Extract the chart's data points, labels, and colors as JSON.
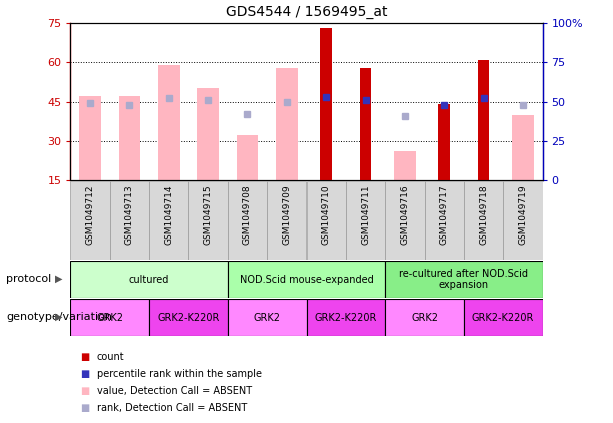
{
  "title": "GDS4544 / 1569495_at",
  "samples": [
    "GSM1049712",
    "GSM1049713",
    "GSM1049714",
    "GSM1049715",
    "GSM1049708",
    "GSM1049709",
    "GSM1049710",
    "GSM1049711",
    "GSM1049716",
    "GSM1049717",
    "GSM1049718",
    "GSM1049719"
  ],
  "count_values": [
    null,
    null,
    null,
    null,
    null,
    null,
    73,
    58,
    null,
    44,
    61,
    null
  ],
  "pink_bar_heights": [
    47,
    47,
    59,
    50,
    32,
    58,
    null,
    null,
    26,
    null,
    null,
    40
  ],
  "red_bar_absent": [
    null,
    null,
    null,
    null,
    null,
    null,
    73,
    58,
    null,
    44,
    61,
    null
  ],
  "blue_square_values": [
    49,
    48,
    52,
    51,
    42,
    50,
    53,
    51,
    41,
    48,
    52,
    48
  ],
  "blue_absent": [
    true,
    true,
    true,
    true,
    true,
    true,
    false,
    false,
    true,
    false,
    false,
    true
  ],
  "ylim_left": [
    15,
    75
  ],
  "ylim_right": [
    0,
    100
  ],
  "yticks_left": [
    15,
    30,
    45,
    60,
    75
  ],
  "yticks_right": [
    0,
    25,
    50,
    75,
    100
  ],
  "ytick_labels_right": [
    "0",
    "25",
    "50",
    "75",
    "100%"
  ],
  "pink_color": "#FFB6C1",
  "red_color": "#CC0000",
  "blue_color": "#3333BB",
  "blue_absent_color": "#AAAACC",
  "axis_color_left": "#CC0000",
  "axis_color_right": "#0000BB",
  "proto_groups": [
    {
      "start": 0,
      "end": 3,
      "label": "cultured",
      "color": "#CCFFCC"
    },
    {
      "start": 4,
      "end": 7,
      "label": "NOD.Scid mouse-expanded",
      "color": "#AAFFAA"
    },
    {
      "start": 8,
      "end": 11,
      "label": "re-cultured after NOD.Scid\nexpansion",
      "color": "#88EE88"
    }
  ],
  "geno_groups": [
    {
      "start": 0,
      "end": 1,
      "label": "GRK2",
      "color": "#FF88FF"
    },
    {
      "start": 2,
      "end": 3,
      "label": "GRK2-K220R",
      "color": "#EE44EE"
    },
    {
      "start": 4,
      "end": 5,
      "label": "GRK2",
      "color": "#FF88FF"
    },
    {
      "start": 6,
      "end": 7,
      "label": "GRK2-K220R",
      "color": "#EE44EE"
    },
    {
      "start": 8,
      "end": 9,
      "label": "GRK2",
      "color": "#FF88FF"
    },
    {
      "start": 10,
      "end": 11,
      "label": "GRK2-K220R",
      "color": "#EE44EE"
    }
  ]
}
